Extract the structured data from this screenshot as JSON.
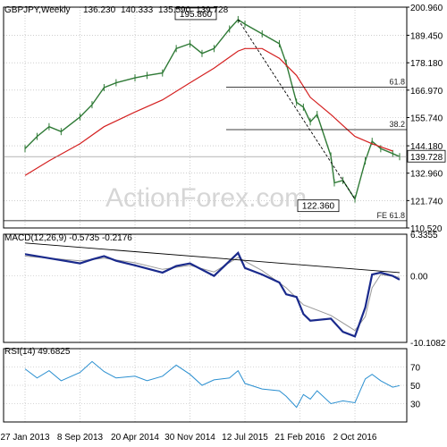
{
  "chart_data": {
    "type": "line",
    "title": "GBPJPY,Weekly",
    "ohlc": {
      "open": "136.230",
      "high": "140.333",
      "low": "135.590",
      "close": "139.728"
    },
    "watermark": "ActionForex.com",
    "x_ticks": [
      "27 Jan 2013",
      "8 Sep 2013",
      "20 Apr 2014",
      "30 Nov 2014",
      "12 Jul 2015",
      "21 Feb 2016",
      "2 Oct 2016"
    ],
    "price_panel": {
      "ylim": [
        110.52,
        200.96
      ],
      "y_ticks": [
        "200.960",
        "189.450",
        "178.180",
        "166.970",
        "155.740",
        "144.180",
        "132.960",
        "121.740",
        "110.520"
      ],
      "last_price_label": "139.728",
      "price_points": [
        [
          "27 Jan 2013",
          143
        ],
        [
          "17 Mar 2013",
          148
        ],
        [
          "5 May 2013",
          152
        ],
        [
          "23 Jun 2013",
          150
        ],
        [
          "8 Sep 2013",
          156
        ],
        [
          "27 Oct 2013",
          161
        ],
        [
          "15 Dec 2013",
          168
        ],
        [
          "2 Feb 2014",
          170
        ],
        [
          "20 Apr 2014",
          172
        ],
        [
          "8 Jun 2014",
          173
        ],
        [
          "10 Aug 2014",
          174
        ],
        [
          "5 Oct 2014",
          184
        ],
        [
          "30 Nov 2014",
          186
        ],
        [
          "18 Jan 2015",
          182
        ],
        [
          "8 Mar 2015",
          184
        ],
        [
          "10 May 2015",
          192
        ],
        [
          "14 Jun 2015",
          195.86
        ],
        [
          "12 Jul 2015",
          194
        ],
        [
          "20 Sep 2015",
          190
        ],
        [
          "29 Nov 2015",
          186
        ],
        [
          "27 Dec 2015",
          178
        ],
        [
          "7 Feb 2016",
          162
        ],
        [
          "6 Mar 2016",
          160
        ],
        [
          "3 Apr 2016",
          154
        ],
        [
          "1 May 2016",
          157
        ],
        [
          "26 Jun 2016",
          140
        ],
        [
          "10 Jul 2016",
          129
        ],
        [
          "14 Aug 2016",
          130
        ],
        [
          "2 Oct 2016",
          122.36
        ],
        [
          "13 Nov 2016",
          138
        ],
        [
          "11 Dec 2016",
          146
        ],
        [
          "15 Jan 2017",
          143
        ],
        [
          "5 Mar 2017",
          141
        ],
        [
          "2 Apr 2017",
          139.728
        ]
      ],
      "moving_average": [
        [
          "27 Jan 2013",
          132
        ],
        [
          "5 May 2013",
          138
        ],
        [
          "8 Sep 2013",
          145
        ],
        [
          "15 Dec 2013",
          152
        ],
        [
          "20 Apr 2014",
          158
        ],
        [
          "10 Aug 2014",
          163
        ],
        [
          "30 Nov 2014",
          170
        ],
        [
          "8 Mar 2015",
          176
        ],
        [
          "14 Jun 2015",
          183
        ],
        [
          "12 Jul 2015",
          184
        ],
        [
          "20 Sep 2015",
          184
        ],
        [
          "29 Nov 2015",
          180
        ],
        [
          "7 Feb 2016",
          173
        ],
        [
          "3 Apr 2016",
          164
        ],
        [
          "26 Jun 2016",
          157
        ],
        [
          "2 Oct 2016",
          148
        ],
        [
          "11 Dec 2016",
          145
        ],
        [
          "5 Mar 2017",
          142
        ]
      ],
      "fib_levels": [
        {
          "label": "61.8",
          "value": 168.2
        },
        {
          "label": "38.2",
          "value": 150.8
        },
        {
          "label": "FE 61.8",
          "value": 113.5
        }
      ],
      "annotations": [
        {
          "text": "195.860",
          "value": 195.86
        },
        {
          "text": "122.360",
          "value": 122.36
        }
      ]
    },
    "macd_panel": {
      "label": "MACD(12,26,9) -0.5735 -0.2176",
      "ylim": [
        -10.1082,
        6.3355
      ],
      "y_ticks": [
        "6.3355",
        "0.00",
        "-10.1082"
      ],
      "macd": [
        [
          "27 Jan 2013",
          3.3
        ],
        [
          "5 May 2013",
          2.7
        ],
        [
          "8 Sep 2013",
          1.9
        ],
        [
          "27 Oct 2013",
          2.5
        ],
        [
          "15 Dec 2013",
          3.0
        ],
        [
          "2 Feb 2014",
          2.3
        ],
        [
          "20 Apr 2014",
          1.6
        ],
        [
          "10 Aug 2014",
          0.5
        ],
        [
          "5 Oct 2014",
          1.5
        ],
        [
          "30 Nov 2014",
          1.9
        ],
        [
          "8 Mar 2015",
          0.0
        ],
        [
          "14 Jun 2015",
          3.5
        ],
        [
          "12 Jul 2015",
          1.2
        ],
        [
          "20 Sep 2015",
          0.2
        ],
        [
          "29 Nov 2015",
          -1.0
        ],
        [
          "27 Dec 2015",
          -2.8
        ],
        [
          "7 Feb 2016",
          -3.2
        ],
        [
          "6 Mar 2016",
          -5.8
        ],
        [
          "3 Apr 2016",
          -6.8
        ],
        [
          "26 Jun 2016",
          -6.5
        ],
        [
          "14 Aug 2016",
          -8.5
        ],
        [
          "2 Oct 2016",
          -9.2
        ],
        [
          "13 Nov 2016",
          -4.8
        ],
        [
          "11 Dec 2016",
          0.2
        ],
        [
          "15 Jan 2017",
          0.5
        ],
        [
          "5 Mar 2017",
          0.0
        ],
        [
          "2 Apr 2017",
          -0.57
        ]
      ],
      "signal": [
        [
          "27 Jan 2013",
          3.0
        ],
        [
          "8 Sep 2013",
          2.3
        ],
        [
          "15 Dec 2013",
          2.7
        ],
        [
          "20 Apr 2014",
          2.0
        ],
        [
          "10 Aug 2014",
          1.0
        ],
        [
          "30 Nov 2014",
          1.6
        ],
        [
          "8 Mar 2015",
          0.6
        ],
        [
          "14 Jun 2015",
          2.8
        ],
        [
          "20 Sep 2015",
          0.8
        ],
        [
          "27 Dec 2015",
          -1.8
        ],
        [
          "6 Mar 2016",
          -4.4
        ],
        [
          "26 Jun 2016",
          -6.0
        ],
        [
          "2 Oct 2016",
          -8.3
        ],
        [
          "13 Nov 2016",
          -6.2
        ],
        [
          "11 Dec 2016",
          -1.8
        ],
        [
          "15 Jan 2017",
          0.2
        ],
        [
          "2 Apr 2017",
          -0.22
        ]
      ],
      "trendline": [
        [
          "27 Jan 2013",
          5.0
        ],
        [
          "2 Apr 2017",
          0.5
        ]
      ]
    },
    "rsi_panel": {
      "label": "RSI(14) 49.6825",
      "ylim": [
        10,
        90
      ],
      "y_ticks": [
        "70",
        "50",
        "30"
      ],
      "rsi": [
        [
          "27 Jan 2013",
          68
        ],
        [
          "17 Mar 2013",
          58
        ],
        [
          "5 May 2013",
          66
        ],
        [
          "23 Jun 2013",
          55
        ],
        [
          "8 Sep 2013",
          64
        ],
        [
          "27 Oct 2013",
          76
        ],
        [
          "15 Dec 2013",
          65
        ],
        [
          "2 Feb 2014",
          58
        ],
        [
          "20 Apr 2014",
          60
        ],
        [
          "8 Jun 2014",
          55
        ],
        [
          "10 Aug 2014",
          60
        ],
        [
          "5 Oct 2014",
          72
        ],
        [
          "30 Nov 2014",
          62
        ],
        [
          "18 Jan 2015",
          50
        ],
        [
          "8 Mar 2015",
          56
        ],
        [
          "10 May 2015",
          58
        ],
        [
          "14 Jun 2015",
          66
        ],
        [
          "12 Jul 2015",
          52
        ],
        [
          "20 Sep 2015",
          46
        ],
        [
          "29 Nov 2015",
          44
        ],
        [
          "27 Dec 2015",
          38
        ],
        [
          "7 Feb 2016",
          26
        ],
        [
          "6 Mar 2016",
          40
        ],
        [
          "3 Apr 2016",
          35
        ],
        [
          "1 May 2016",
          44
        ],
        [
          "26 Jun 2016",
          30
        ],
        [
          "14 Aug 2016",
          33
        ],
        [
          "2 Oct 2016",
          31
        ],
        [
          "13 Nov 2016",
          57
        ],
        [
          "11 Dec 2016",
          62
        ],
        [
          "15 Jan 2017",
          55
        ],
        [
          "5 Mar 2017",
          48
        ],
        [
          "2 Apr 2017",
          49.68
        ]
      ]
    },
    "grid": true,
    "colors": {
      "price": "#2f7a36",
      "ma": "#d42020",
      "macd": "#1a2a8c",
      "signal": "#999999",
      "rsi": "#2a8fd0",
      "trendline": "#000000",
      "fib": "#000000"
    }
  }
}
